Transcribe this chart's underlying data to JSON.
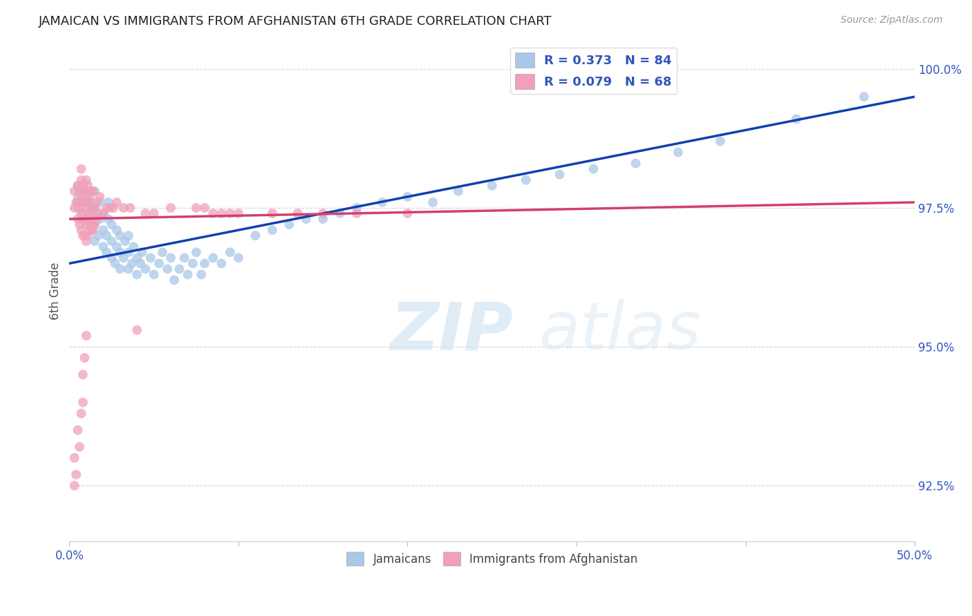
{
  "title": "JAMAICAN VS IMMIGRANTS FROM AFGHANISTAN 6TH GRADE CORRELATION CHART",
  "source": "Source: ZipAtlas.com",
  "ylabel": "6th Grade",
  "x_min": 0.0,
  "x_max": 0.5,
  "y_min": 91.5,
  "y_max": 100.5,
  "y_ticks": [
    92.5,
    95.0,
    97.5,
    100.0
  ],
  "y_tick_labels": [
    "92.5%",
    "95.0%",
    "97.5%",
    "100.0%"
  ],
  "x_ticks": [
    0.0,
    0.1,
    0.2,
    0.3,
    0.4,
    0.5
  ],
  "x_tick_labels": [
    "0.0%",
    "",
    "",
    "",
    "",
    "50.0%"
  ],
  "blue_color": "#a8c8e8",
  "pink_color": "#f0a0b8",
  "blue_line_color": "#1040b0",
  "pink_line_color": "#d04070",
  "blue_line_x0": 0.0,
  "blue_line_y0": 96.5,
  "blue_line_x1": 0.5,
  "blue_line_y1": 99.5,
  "pink_line_x0": 0.0,
  "pink_line_y0": 97.3,
  "pink_line_x1": 0.5,
  "pink_line_y1": 97.6,
  "blue_scatter_x": [
    0.005,
    0.005,
    0.005,
    0.008,
    0.008,
    0.01,
    0.01,
    0.012,
    0.012,
    0.013,
    0.013,
    0.015,
    0.015,
    0.015,
    0.015,
    0.017,
    0.018,
    0.018,
    0.02,
    0.02,
    0.02,
    0.022,
    0.022,
    0.023,
    0.023,
    0.025,
    0.025,
    0.025,
    0.027,
    0.028,
    0.028,
    0.03,
    0.03,
    0.03,
    0.032,
    0.033,
    0.035,
    0.035,
    0.035,
    0.037,
    0.038,
    0.04,
    0.04,
    0.042,
    0.043,
    0.045,
    0.048,
    0.05,
    0.053,
    0.055,
    0.058,
    0.06,
    0.062,
    0.065,
    0.068,
    0.07,
    0.073,
    0.075,
    0.078,
    0.08,
    0.085,
    0.09,
    0.095,
    0.1,
    0.11,
    0.12,
    0.13,
    0.14,
    0.15,
    0.16,
    0.17,
    0.185,
    0.2,
    0.215,
    0.23,
    0.25,
    0.27,
    0.29,
    0.31,
    0.335,
    0.36,
    0.385,
    0.43,
    0.47
  ],
  "blue_scatter_y": [
    97.5,
    97.7,
    97.9,
    97.4,
    97.8,
    97.3,
    97.7,
    97.2,
    97.6,
    97.1,
    97.5,
    96.9,
    97.2,
    97.5,
    97.8,
    97.0,
    97.3,
    97.6,
    96.8,
    97.1,
    97.4,
    96.7,
    97.0,
    97.3,
    97.6,
    96.6,
    96.9,
    97.2,
    96.5,
    96.8,
    97.1,
    96.4,
    96.7,
    97.0,
    96.6,
    96.9,
    96.4,
    96.7,
    97.0,
    96.5,
    96.8,
    96.3,
    96.6,
    96.5,
    96.7,
    96.4,
    96.6,
    96.3,
    96.5,
    96.7,
    96.4,
    96.6,
    96.2,
    96.4,
    96.6,
    96.3,
    96.5,
    96.7,
    96.3,
    96.5,
    96.6,
    96.5,
    96.7,
    96.6,
    97.0,
    97.1,
    97.2,
    97.3,
    97.3,
    97.4,
    97.5,
    97.6,
    97.7,
    97.6,
    97.8,
    97.9,
    98.0,
    98.1,
    98.2,
    98.3,
    98.5,
    98.7,
    99.1,
    99.5
  ],
  "pink_scatter_x": [
    0.003,
    0.003,
    0.004,
    0.005,
    0.005,
    0.005,
    0.006,
    0.006,
    0.006,
    0.007,
    0.007,
    0.007,
    0.007,
    0.007,
    0.008,
    0.008,
    0.008,
    0.008,
    0.009,
    0.009,
    0.009,
    0.009,
    0.01,
    0.01,
    0.01,
    0.01,
    0.01,
    0.011,
    0.011,
    0.011,
    0.011,
    0.012,
    0.012,
    0.012,
    0.013,
    0.013,
    0.013,
    0.014,
    0.014,
    0.014,
    0.015,
    0.015,
    0.016,
    0.016,
    0.017,
    0.018,
    0.02,
    0.022,
    0.024,
    0.026,
    0.028,
    0.032,
    0.036,
    0.04,
    0.045,
    0.05,
    0.06,
    0.075,
    0.08,
    0.085,
    0.09,
    0.095,
    0.1,
    0.12,
    0.135,
    0.15,
    0.17,
    0.2
  ],
  "pink_scatter_y": [
    97.5,
    97.8,
    97.6,
    97.3,
    97.6,
    97.9,
    97.2,
    97.5,
    97.8,
    97.1,
    97.4,
    97.7,
    98.0,
    98.2,
    97.0,
    97.3,
    97.6,
    97.9,
    97.0,
    97.3,
    97.6,
    97.8,
    96.9,
    97.2,
    97.5,
    97.8,
    98.0,
    97.0,
    97.3,
    97.6,
    97.9,
    97.1,
    97.4,
    97.7,
    97.2,
    97.5,
    97.8,
    97.1,
    97.4,
    97.8,
    97.2,
    97.5,
    97.3,
    97.6,
    97.4,
    97.7,
    97.4,
    97.5,
    97.5,
    97.5,
    97.6,
    97.5,
    97.5,
    95.3,
    97.4,
    97.4,
    97.5,
    97.5,
    97.5,
    97.4,
    97.4,
    97.4,
    97.4,
    97.4,
    97.4,
    97.4,
    97.4,
    97.4
  ],
  "pink_extra_low_x": [
    0.003,
    0.003,
    0.004,
    0.005,
    0.006,
    0.007,
    0.008,
    0.008,
    0.009,
    0.01
  ],
  "pink_extra_low_y": [
    93.0,
    92.5,
    92.7,
    93.5,
    93.2,
    93.8,
    94.0,
    94.5,
    94.8,
    95.2
  ]
}
